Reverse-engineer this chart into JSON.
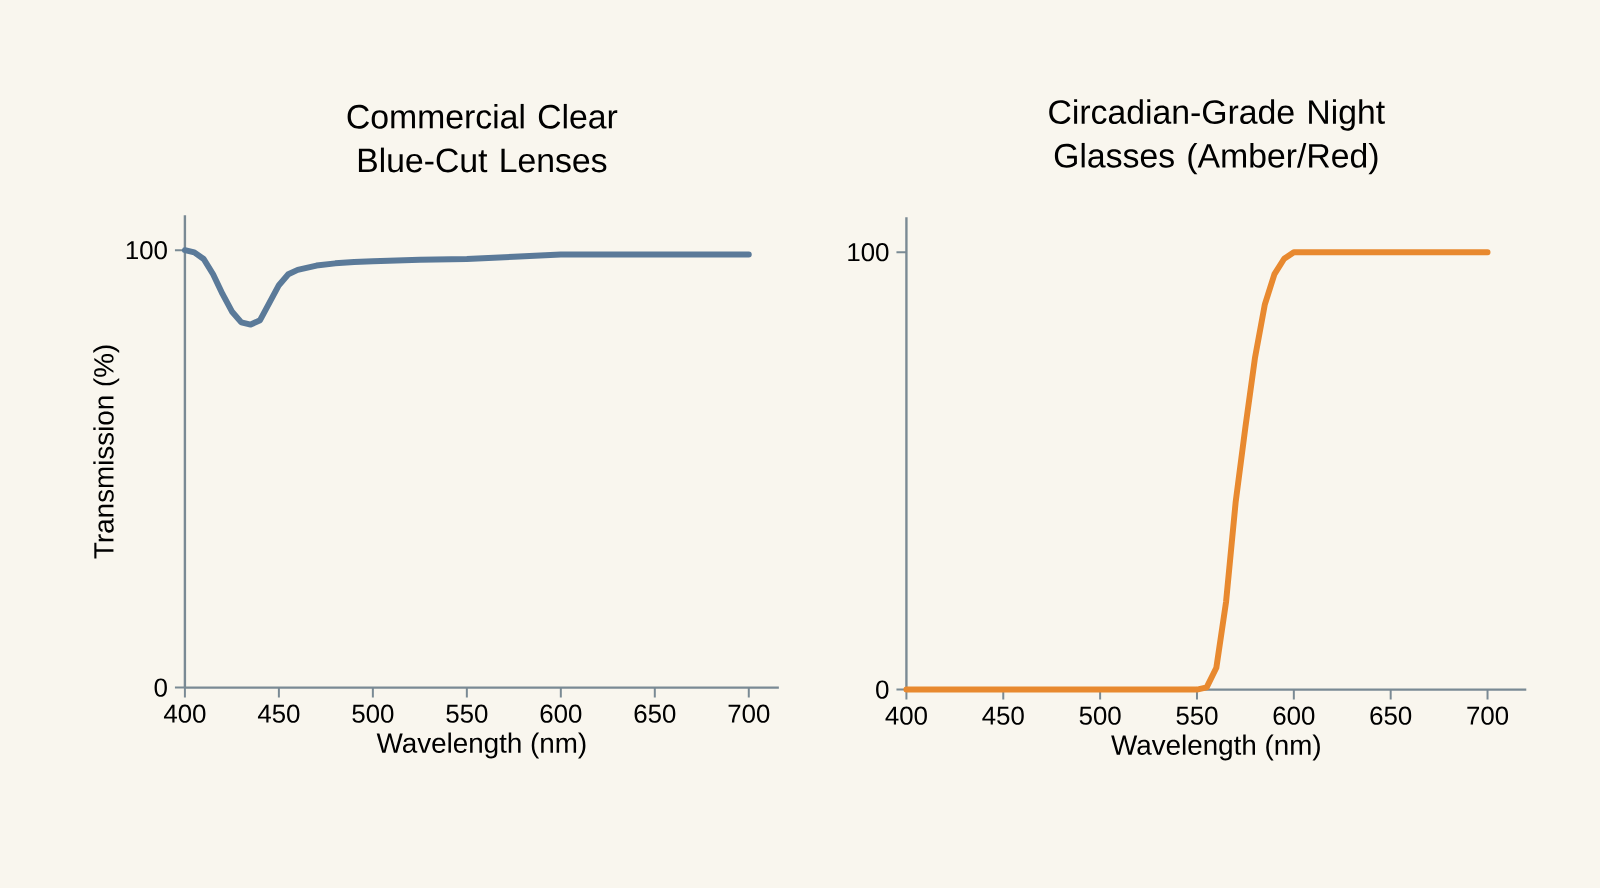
{
  "chart_data": [
    {
      "type": "line",
      "title": "Commercial Clear Blue-Cut Lenses",
      "xlabel": "Wavelength (nm)",
      "ylabel": "Transmission (%)",
      "x": [
        400,
        405,
        410,
        415,
        420,
        425,
        430,
        435,
        440,
        445,
        450,
        455,
        460,
        470,
        480,
        490,
        500,
        525,
        550,
        575,
        600,
        650,
        700
      ],
      "values": [
        100,
        99.5,
        98,
        94.5,
        90,
        86,
        83.5,
        83,
        84,
        88,
        92,
        94.5,
        95.5,
        96.5,
        97,
        97.3,
        97.5,
        97.8,
        98,
        98.5,
        99,
        99,
        99
      ],
      "color": "#5b7a99",
      "xlim": [
        400,
        716
      ],
      "ylim": [
        0,
        108
      ],
      "xticks": [
        400,
        450,
        500,
        550,
        600,
        650,
        700
      ],
      "yticks": [
        0,
        100
      ]
    },
    {
      "type": "line",
      "title": "Circadian-Grade Night Glasses (Amber/Red)",
      "xlabel": "Wavelength (nm)",
      "x": [
        400,
        550,
        555,
        560,
        565,
        570,
        575,
        580,
        585,
        590,
        595,
        600,
        700
      ],
      "values": [
        0,
        0,
        0.5,
        5,
        20,
        43,
        60,
        76,
        88,
        95,
        98.5,
        100,
        100
      ],
      "color": "#e8892f",
      "xlim": [
        400,
        720
      ],
      "ylim": [
        0,
        108
      ],
      "xticks": [
        400,
        450,
        500,
        550,
        600,
        650,
        700
      ],
      "yticks": [
        0,
        100
      ]
    }
  ]
}
